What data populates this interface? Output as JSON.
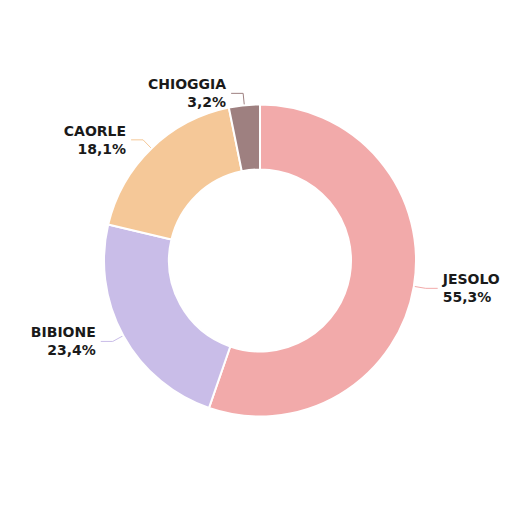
{
  "chart_data": {
    "type": "donut",
    "categories": [
      "JESOLO",
      "BIBIONE",
      "CAORLE",
      "CHIOGGIA"
    ],
    "values": [
      55.3,
      23.4,
      18.1,
      3.2
    ],
    "value_labels": [
      "55,3%",
      "23,4%",
      "18,1%",
      "3,2%"
    ],
    "colors": [
      "#F2AAAA",
      "#C9BDE8",
      "#F5C898",
      "#9E8080"
    ],
    "data_labels": true,
    "legend": false
  }
}
